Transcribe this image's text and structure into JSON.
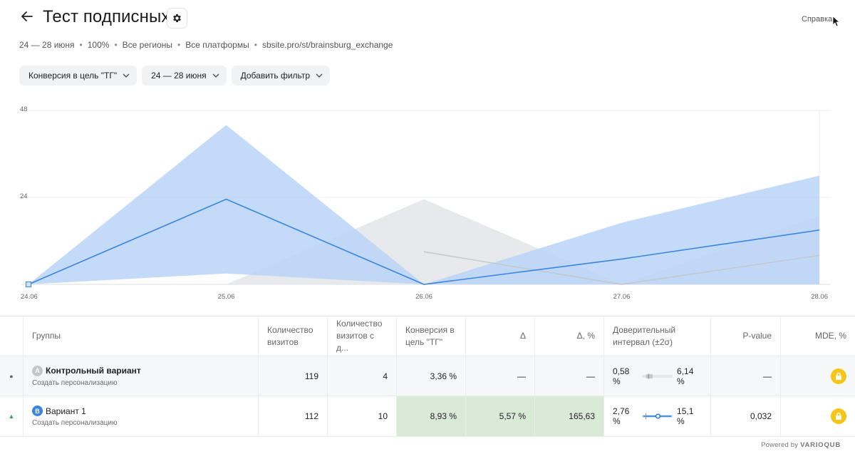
{
  "header": {
    "back_icon": "arrow-left-icon",
    "title": "Тест подписных",
    "settings_icon": "gear-icon",
    "help": "Справка"
  },
  "meta": {
    "dates": "24 — 28 июня",
    "percent": "100%",
    "regions": "Все регионы",
    "platforms": "Все платформы",
    "url": "sbsite.pro/st/brainsburg_exchange"
  },
  "filters": {
    "goal": "Конверсия в цель \"ТГ\"",
    "dates": "24 — 28 июня",
    "add": "Добавить фильтр"
  },
  "chart_data": {
    "type": "area",
    "categories": [
      "24.06",
      "25.06",
      "26.06",
      "27.06",
      "28.06"
    ],
    "yticks": [
      "48",
      "24"
    ],
    "ylim": [
      0,
      48
    ],
    "series": [
      {
        "name": "Вариант 1",
        "color": "#3a86e0",
        "band_color": "#b9d4f7",
        "values": [
          0,
          23.5,
          0,
          7,
          15
        ],
        "upper": [
          0,
          44,
          0,
          17,
          30
        ],
        "lower": [
          0,
          3,
          0,
          0,
          0
        ]
      },
      {
        "name": "Контрольный вариант",
        "color": "#c4c6cc",
        "band_color": "#e8e9ec",
        "values": [
          null,
          null,
          9,
          0,
          8
        ],
        "upper": [
          null,
          0,
          23.5,
          0,
          19
        ],
        "lower": [
          null,
          0,
          0,
          0,
          0
        ]
      }
    ]
  },
  "table": {
    "headers": {
      "groups": "Группы",
      "visits": "Количество визитов",
      "visits_goal": "Количество визитов с д...",
      "conversion": "Конверсия в цель \"ТГ\"",
      "delta": "Δ",
      "delta_pct": "Δ, %",
      "ci": "Доверительный интервал (±2σ)",
      "pvalue": "P-value",
      "mde": "MDE, %"
    },
    "rows": [
      {
        "badge": "A",
        "name": "Контрольный вариант",
        "sub": "Создать персонализацию",
        "visits": "119",
        "visits_goal": "4",
        "conversion": "3,36 %",
        "delta": "—",
        "delta_pct": "—",
        "ci_low": "0,58 %",
        "ci_high": "6,14 %",
        "pvalue": "—",
        "marker": "●"
      },
      {
        "badge": "B",
        "name": "Вариант 1",
        "sub": "Создать персонализацию",
        "visits": "112",
        "visits_goal": "10",
        "conversion": "8,93 %",
        "delta": "5,57 %",
        "delta_pct": "165,63",
        "ci_low": "2,76 %",
        "ci_high": "15,1 %",
        "pvalue": "0,032",
        "marker": "▲"
      }
    ]
  },
  "footer": {
    "powered": "Powered by",
    "brand": "VARIOQUB"
  },
  "colors": {
    "accent": "#3a86e0",
    "highlight": "#d9ebd7",
    "lock": "#f5c518"
  }
}
